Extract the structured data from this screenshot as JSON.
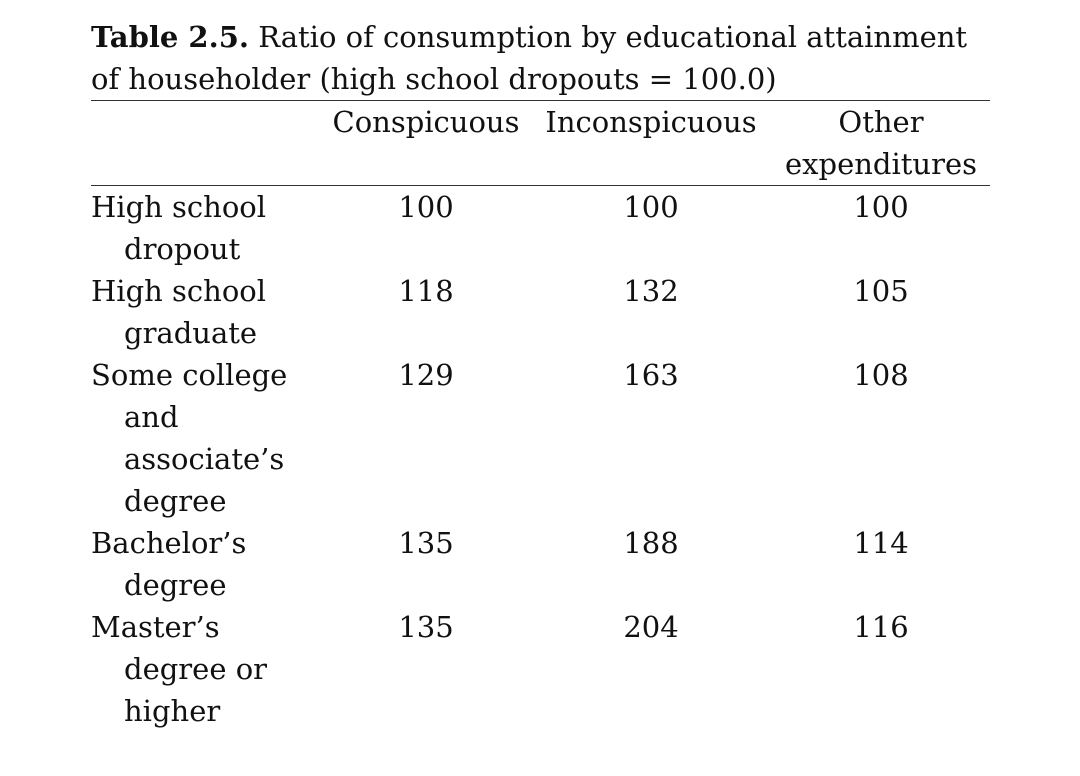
{
  "caption": {
    "label": "Table 2.5.",
    "text": "Ratio of consumption by educational attainment of householder (high school dropouts = 100.0)"
  },
  "table": {
    "header": [
      "",
      "Conspicuous",
      "Inconspicuous",
      "Other expenditures"
    ],
    "rows": [
      [
        "High school dropout",
        100,
        100,
        100
      ],
      [
        "High school graduate",
        118,
        132,
        105
      ],
      [
        "Some college and associate’s degree",
        129,
        163,
        108
      ],
      [
        "Bachelor’s degree",
        135,
        188,
        114
      ],
      [
        "Master’s degree or higher",
        135,
        204,
        116
      ]
    ]
  }
}
